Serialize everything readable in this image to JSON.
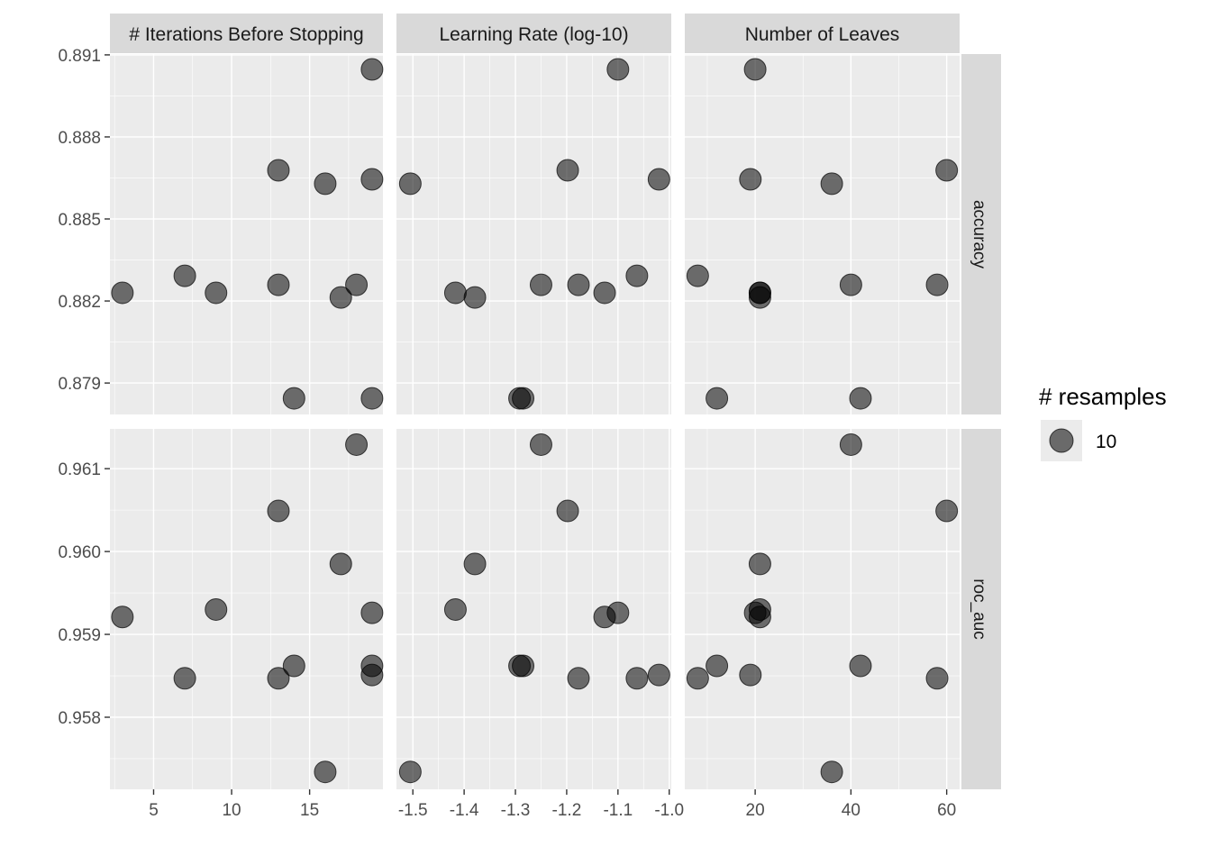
{
  "chart_data": {
    "type": "scatter",
    "facet_columns": [
      {
        "label": "# Iterations Before Stopping",
        "key": "iter",
        "xlim": [
          2.2,
          19.7
        ],
        "ticks": [
          5,
          10,
          15
        ],
        "tick_labels": [
          "5",
          "10",
          "15"
        ]
      },
      {
        "label": "Learning Rate (log-10)",
        "key": "lr",
        "xlim": [
          -1.532,
          -0.996
        ],
        "ticks": [
          -1.5,
          -1.4,
          -1.3,
          -1.2,
          -1.1,
          -1.0
        ],
        "tick_labels": [
          "-1.5",
          "-1.4",
          "-1.3",
          "-1.2",
          "-1.1",
          "-1.0"
        ]
      },
      {
        "label": "Number of Leaves",
        "key": "leaves",
        "xlim": [
          5.3,
          62.7
        ],
        "ticks": [
          20,
          40,
          60
        ],
        "tick_labels": [
          "20",
          "40",
          "60"
        ]
      }
    ],
    "facet_rows": [
      {
        "label": "accuracy",
        "key": "accuracy",
        "ylim": [
          0.87785,
          0.89103
        ],
        "ticks": [
          0.879,
          0.882,
          0.885,
          0.888,
          0.891
        ],
        "tick_labels": [
          "0.879",
          "0.882",
          "0.885",
          "0.888",
          "0.891"
        ]
      },
      {
        "label": "roc_auc",
        "key": "roc_auc",
        "ylim": [
          0.95713,
          0.96148
        ],
        "ticks": [
          0.958,
          0.959,
          0.96,
          0.961
        ],
        "tick_labels": [
          "0.958",
          "0.959",
          "0.960",
          "0.961"
        ]
      }
    ],
    "points": [
      {
        "iter": 16,
        "lr": -1.505,
        "leaves": 36,
        "accuracy": 0.88629,
        "roc_auc": 0.95734
      },
      {
        "iter": 9,
        "lr": -1.417,
        "leaves": 21,
        "accuracy": 0.8823,
        "roc_auc": 0.9593
      },
      {
        "iter": 17,
        "lr": -1.379,
        "leaves": 21,
        "accuracy": 0.88213,
        "roc_auc": 0.95985
      },
      {
        "iter": 14,
        "lr": -1.292,
        "leaves": 12,
        "accuracy": 0.87844,
        "roc_auc": 0.95862
      },
      {
        "iter": 19,
        "lr": -1.285,
        "leaves": 42,
        "accuracy": 0.87844,
        "roc_auc": 0.95862
      },
      {
        "iter": 18,
        "lr": -1.25,
        "leaves": 40,
        "accuracy": 0.88259,
        "roc_auc": 0.96129
      },
      {
        "iter": 13,
        "lr": -1.198,
        "leaves": 60,
        "accuracy": 0.88678,
        "roc_auc": 0.96049
      },
      {
        "iter": 13,
        "lr": -1.177,
        "leaves": 58,
        "accuracy": 0.88259,
        "roc_auc": 0.95847
      },
      {
        "iter": 3,
        "lr": -1.126,
        "leaves": 21,
        "accuracy": 0.8823,
        "roc_auc": 0.95921
      },
      {
        "iter": 19,
        "lr": -1.1,
        "leaves": 20,
        "accuracy": 0.89047,
        "roc_auc": 0.95926
      },
      {
        "iter": 7,
        "lr": -1.063,
        "leaves": 8,
        "accuracy": 0.88292,
        "roc_auc": 0.95847
      },
      {
        "iter": 19,
        "lr": -1.02,
        "leaves": 19,
        "accuracy": 0.88645,
        "roc_auc": 0.95851
      }
    ],
    "legend": {
      "title": "# resamples",
      "entries": [
        "10"
      ],
      "placement": "right"
    },
    "grid": true,
    "colors": {
      "panel": "#ebebeb",
      "strip": "#d9d9d9",
      "point": "#000000"
    }
  }
}
